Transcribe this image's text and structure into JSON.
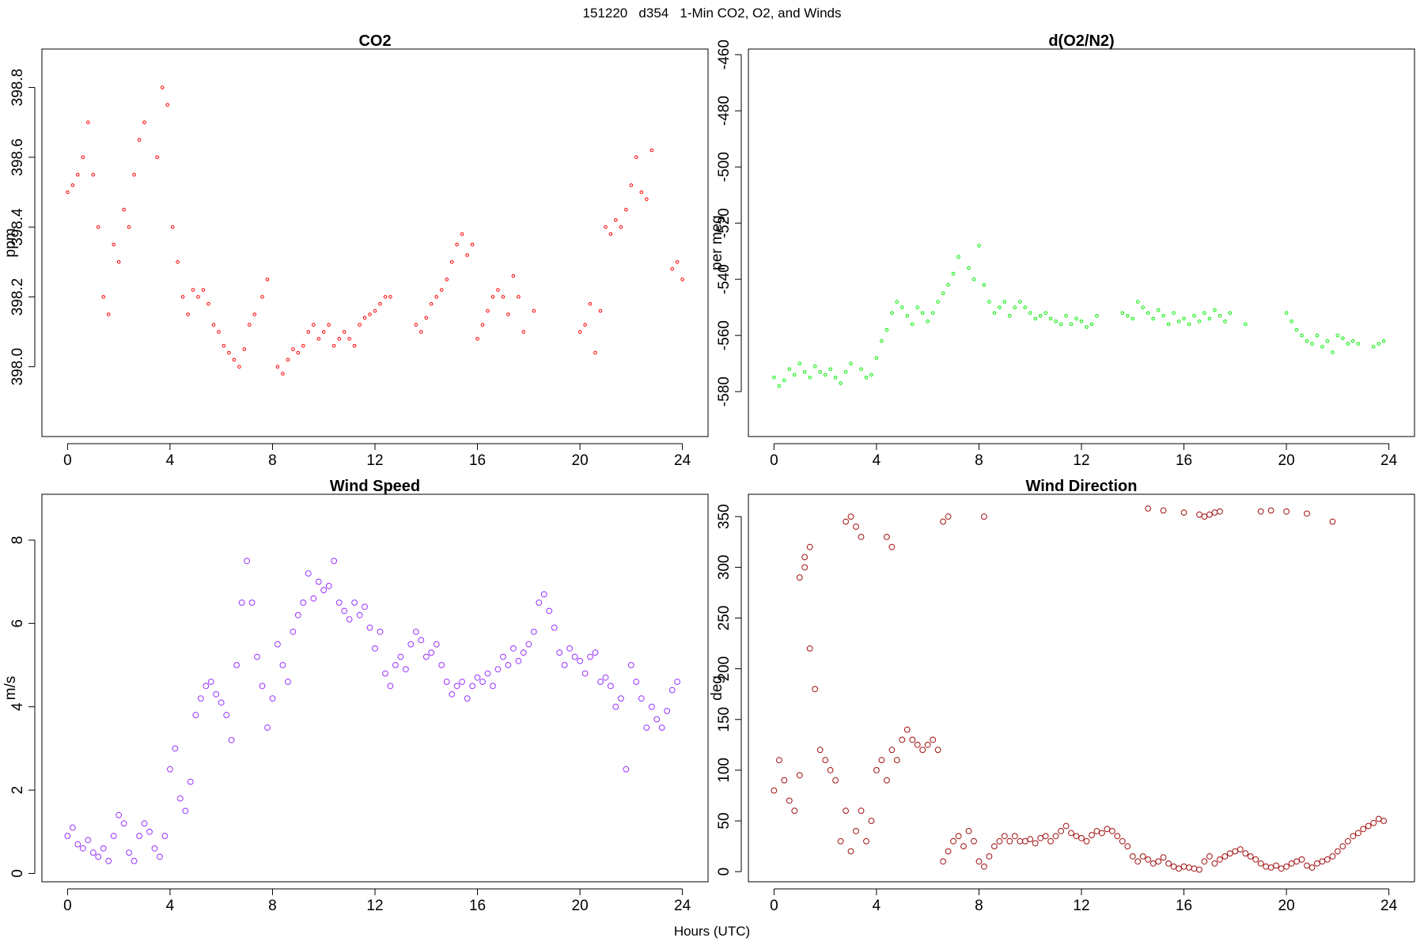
{
  "figure": {
    "suptitle": "151220   d354   1-Min CO2, O2, and Winds",
    "xlabel": "Hours (UTC)"
  },
  "chart_data": [
    {
      "type": "scatter",
      "title": "CO2",
      "xlabel": "",
      "ylabel": "ppm",
      "xlim": [
        -1,
        25
      ],
      "ylim": [
        397.8,
        398.91
      ],
      "xticks": [
        0,
        4,
        8,
        12,
        16,
        20,
        24
      ],
      "yticks": [
        398.0,
        398.2,
        398.4,
        398.6,
        398.8
      ],
      "ytick_labels": [
        "398.0",
        "398.2",
        "398.4",
        "398.6",
        "398.8"
      ],
      "color": "#ff0000",
      "marker_radius": 1.8,
      "series": [
        {
          "name": "CO2",
          "x": [
            0,
            0.2,
            0.4,
            0.6,
            0.8,
            1.0,
            1.2,
            1.4,
            1.6,
            1.8,
            2.0,
            2.2,
            2.4,
            2.6,
            2.8,
            3.0,
            3.5,
            3.7,
            3.9,
            4.1,
            4.3,
            4.5,
            4.7,
            4.9,
            5.1,
            5.3,
            5.5,
            5.7,
            5.9,
            6.1,
            6.3,
            6.5,
            6.7,
            6.9,
            7.1,
            7.3,
            7.6,
            7.8,
            8.2,
            8.4,
            8.6,
            8.8,
            9.0,
            9.2,
            9.4,
            9.6,
            9.8,
            10.0,
            10.2,
            10.4,
            10.6,
            10.8,
            11.0,
            11.2,
            11.4,
            11.6,
            11.8,
            12.0,
            12.2,
            12.4,
            12.6,
            13.6,
            13.8,
            14.0,
            14.2,
            14.4,
            14.6,
            14.8,
            15.0,
            15.2,
            15.4,
            15.6,
            15.8,
            16.0,
            16.2,
            16.4,
            16.6,
            16.8,
            17.0,
            17.2,
            17.4,
            17.6,
            17.8,
            18.2,
            20.0,
            20.2,
            20.4,
            20.6,
            20.8,
            21.0,
            21.2,
            21.4,
            21.6,
            21.8,
            22.0,
            22.2,
            22.4,
            22.6,
            22.8,
            23.6,
            23.8,
            24.0
          ],
          "y": [
            398.5,
            398.52,
            398.55,
            398.6,
            398.7,
            398.55,
            398.4,
            398.2,
            398.15,
            398.35,
            398.3,
            398.45,
            398.4,
            398.55,
            398.65,
            398.7,
            398.6,
            398.8,
            398.75,
            398.4,
            398.3,
            398.2,
            398.15,
            398.22,
            398.2,
            398.22,
            398.18,
            398.12,
            398.1,
            398.06,
            398.04,
            398.02,
            398.0,
            398.05,
            398.12,
            398.15,
            398.2,
            398.25,
            398.0,
            397.98,
            398.02,
            398.05,
            398.04,
            398.06,
            398.1,
            398.12,
            398.08,
            398.1,
            398.12,
            398.06,
            398.08,
            398.1,
            398.08,
            398.06,
            398.12,
            398.14,
            398.15,
            398.16,
            398.18,
            398.2,
            398.2,
            398.12,
            398.1,
            398.14,
            398.18,
            398.2,
            398.22,
            398.25,
            398.3,
            398.35,
            398.38,
            398.32,
            398.35,
            398.08,
            398.12,
            398.16,
            398.2,
            398.22,
            398.2,
            398.15,
            398.26,
            398.2,
            398.1,
            398.16,
            398.1,
            398.12,
            398.18,
            398.04,
            398.16,
            398.4,
            398.38,
            398.42,
            398.4,
            398.45,
            398.52,
            398.6,
            398.5,
            398.48,
            398.62,
            398.28,
            398.3,
            398.25
          ]
        }
      ]
    },
    {
      "type": "scatter",
      "title": "d(O2/N2)",
      "xlabel": "",
      "ylabel": "per meg",
      "xlim": [
        -1,
        25
      ],
      "ylim": [
        -596,
        -458
      ],
      "xticks": [
        0,
        4,
        8,
        12,
        16,
        20,
        24
      ],
      "yticks": [
        -580,
        -560,
        -540,
        -520,
        -500,
        -480,
        -460
      ],
      "ytick_labels": [
        "-580",
        "-560",
        "-540",
        "-520",
        "-500",
        "-480",
        "-460"
      ],
      "color": "#00ee00",
      "marker_radius": 1.8,
      "series": [
        {
          "name": "d(O2/N2)",
          "x": [
            0,
            0.2,
            0.4,
            0.6,
            0.8,
            1.0,
            1.2,
            1.4,
            1.6,
            1.8,
            2.0,
            2.2,
            2.4,
            2.6,
            2.8,
            3.0,
            3.4,
            3.6,
            3.8,
            4.0,
            4.2,
            4.4,
            4.6,
            4.8,
            5.0,
            5.2,
            5.4,
            5.6,
            5.8,
            6.0,
            6.2,
            6.4,
            6.6,
            6.8,
            7.0,
            7.2,
            7.6,
            7.8,
            8.0,
            8.2,
            8.4,
            8.6,
            8.8,
            9.0,
            9.2,
            9.4,
            9.6,
            9.8,
            10.0,
            10.2,
            10.4,
            10.6,
            10.8,
            11.0,
            11.2,
            11.4,
            11.6,
            11.8,
            12.0,
            12.2,
            12.4,
            12.6,
            13.6,
            13.8,
            14.0,
            14.2,
            14.4,
            14.6,
            14.8,
            15.0,
            15.2,
            15.4,
            15.6,
            15.8,
            16.0,
            16.2,
            16.4,
            16.6,
            16.8,
            17.0,
            17.2,
            17.4,
            17.6,
            17.8,
            18.4,
            20.0,
            20.2,
            20.4,
            20.6,
            20.8,
            21.0,
            21.2,
            21.4,
            21.6,
            21.8,
            22.0,
            22.2,
            22.4,
            22.6,
            22.8,
            23.4,
            23.6,
            23.8
          ],
          "y": [
            -575,
            -578,
            -576,
            -572,
            -574,
            -570,
            -573,
            -575,
            -571,
            -573,
            -574,
            -572,
            -575,
            -577,
            -573,
            -570,
            -572,
            -575,
            -574,
            -568,
            -562,
            -558,
            -552,
            -548,
            -550,
            -553,
            -556,
            -550,
            -552,
            -555,
            -552,
            -548,
            -545,
            -542,
            -538,
            -532,
            -536,
            -540,
            -528,
            -542,
            -548,
            -552,
            -550,
            -548,
            -553,
            -550,
            -548,
            -550,
            -552,
            -554,
            -553,
            -552,
            -554,
            -555,
            -556,
            -553,
            -556,
            -554,
            -555,
            -557,
            -556,
            -553,
            -552,
            -553,
            -554,
            -548,
            -550,
            -552,
            -554,
            -551,
            -553,
            -556,
            -552,
            -555,
            -554,
            -556,
            -553,
            -555,
            -552,
            -554,
            -551,
            -553,
            -555,
            -552,
            -556,
            -552,
            -555,
            -558,
            -560,
            -562,
            -563,
            -560,
            -564,
            -562,
            -566,
            -560,
            -561,
            -563,
            -562,
            -563,
            -564,
            -563,
            -562
          ]
        }
      ]
    },
    {
      "type": "scatter",
      "title": "Wind Speed",
      "xlabel": "",
      "ylabel": "m/s",
      "xlim": [
        -1,
        25
      ],
      "ylim": [
        -0.2,
        9.1
      ],
      "xticks": [
        0,
        4,
        8,
        12,
        16,
        20,
        24
      ],
      "yticks": [
        0,
        2,
        4,
        6,
        8
      ],
      "ytick_labels": [
        "0",
        "2",
        "4",
        "6",
        "8"
      ],
      "color": "#9a32ff",
      "marker_radius": 3.4,
      "series": [
        {
          "name": "Wind Speed",
          "x": [
            0,
            0.2,
            0.4,
            0.6,
            0.8,
            1.0,
            1.2,
            1.4,
            1.6,
            1.8,
            2.0,
            2.2,
            2.4,
            2.6,
            2.8,
            3.0,
            3.2,
            3.4,
            3.6,
            3.8,
            4.0,
            4.2,
            4.4,
            4.6,
            4.8,
            5.0,
            5.2,
            5.4,
            5.6,
            5.8,
            6.0,
            6.2,
            6.4,
            6.6,
            6.8,
            7.0,
            7.2,
            7.4,
            7.6,
            7.8,
            8.0,
            8.2,
            8.4,
            8.6,
            8.8,
            9.0,
            9.2,
            9.4,
            9.6,
            9.8,
            10.0,
            10.2,
            10.4,
            10.6,
            10.8,
            11.0,
            11.2,
            11.4,
            11.6,
            11.8,
            12.0,
            12.2,
            12.4,
            12.6,
            12.8,
            13.0,
            13.2,
            13.4,
            13.6,
            13.8,
            14.0,
            14.2,
            14.4,
            14.6,
            14.8,
            15.0,
            15.2,
            15.4,
            15.6,
            15.8,
            16.0,
            16.2,
            16.4,
            16.6,
            16.8,
            17.0,
            17.2,
            17.4,
            17.6,
            17.8,
            18.0,
            18.2,
            18.4,
            18.6,
            18.8,
            19.0,
            19.2,
            19.4,
            19.6,
            19.8,
            20.0,
            20.2,
            20.4,
            20.6,
            20.8,
            21.0,
            21.2,
            21.4,
            21.6,
            21.8,
            22.0,
            22.2,
            22.4,
            22.6,
            22.8,
            23.0,
            23.2,
            23.4,
            23.6,
            23.8
          ],
          "y": [
            0.9,
            1.1,
            0.7,
            0.6,
            0.8,
            0.5,
            0.4,
            0.6,
            0.3,
            0.9,
            1.4,
            1.2,
            0.5,
            0.3,
            0.9,
            1.2,
            1.0,
            0.6,
            0.4,
            0.9,
            2.5,
            3.0,
            1.8,
            1.5,
            2.2,
            3.8,
            4.2,
            4.5,
            4.6,
            4.3,
            4.1,
            3.8,
            3.2,
            5.0,
            6.5,
            7.5,
            6.5,
            5.2,
            4.5,
            3.5,
            4.2,
            5.5,
            5.0,
            4.6,
            5.8,
            6.2,
            6.5,
            7.2,
            6.6,
            7.0,
            6.8,
            6.9,
            7.5,
            6.5,
            6.3,
            6.1,
            6.5,
            6.2,
            6.4,
            5.9,
            5.4,
            5.8,
            4.8,
            4.5,
            5.0,
            5.2,
            4.9,
            5.5,
            5.8,
            5.6,
            5.2,
            5.3,
            5.5,
            5.0,
            4.6,
            4.3,
            4.5,
            4.6,
            4.2,
            4.5,
            4.7,
            4.6,
            4.8,
            4.5,
            4.9,
            5.2,
            5.0,
            5.4,
            5.1,
            5.3,
            5.5,
            5.8,
            6.5,
            6.7,
            6.3,
            5.9,
            5.3,
            5.0,
            5.4,
            5.2,
            5.1,
            4.8,
            5.2,
            5.3,
            4.6,
            4.7,
            4.5,
            4.0,
            4.2,
            2.5,
            5.0,
            4.6,
            4.2,
            3.5,
            4.0,
            3.7,
            3.5,
            3.9,
            4.4,
            4.6
          ]
        }
      ]
    },
    {
      "type": "scatter",
      "title": "Wind Direction",
      "xlabel": "",
      "ylabel": "deg",
      "xlim": [
        -1,
        25
      ],
      "ylim": [
        -10,
        372
      ],
      "xticks": [
        0,
        4,
        8,
        12,
        16,
        20,
        24
      ],
      "yticks": [
        0,
        50,
        100,
        150,
        200,
        250,
        300,
        350
      ],
      "ytick_labels": [
        "0",
        "50",
        "100",
        "150",
        "200",
        "250",
        "300",
        "350"
      ],
      "color": "#a01010",
      "marker_radius": 3.4,
      "series": [
        {
          "name": "Wind Direction",
          "x": [
            0,
            0.2,
            0.4,
            0.6,
            0.8,
            1.0,
            1.2,
            1.4,
            1.6,
            1.8,
            2.0,
            2.2,
            2.4,
            2.6,
            2.8,
            3.0,
            3.2,
            3.4,
            3.6,
            3.8,
            4.0,
            4.2,
            4.4,
            4.6,
            4.8,
            5.0,
            5.2,
            5.4,
            5.6,
            5.8,
            6.0,
            6.2,
            6.4,
            6.6,
            6.8,
            7.0,
            7.2,
            7.4,
            7.6,
            7.8,
            8.0,
            8.2,
            8.4,
            8.6,
            8.8,
            9.0,
            9.2,
            9.4,
            9.6,
            9.8,
            10.0,
            10.2,
            10.4,
            10.6,
            10.8,
            11.0,
            11.2,
            11.4,
            11.6,
            11.8,
            12.0,
            12.2,
            12.4,
            12.6,
            12.8,
            13.0,
            13.2,
            13.4,
            13.6,
            13.8,
            14.0,
            14.2,
            14.4,
            14.6,
            14.8,
            15.0,
            15.2,
            15.4,
            15.6,
            15.8,
            16.0,
            16.2,
            16.4,
            16.6,
            16.8,
            17.0,
            17.2,
            17.4,
            17.6,
            17.8,
            18.0,
            18.2,
            18.4,
            18.6,
            18.8,
            19.0,
            19.2,
            19.4,
            19.6,
            19.8,
            20.0,
            20.2,
            20.4,
            20.6,
            20.8,
            21.0,
            21.2,
            21.4,
            21.6,
            21.8,
            22.0,
            22.2,
            22.4,
            22.6,
            22.8,
            23.0,
            23.2,
            23.4,
            23.6,
            23.8,
            2.8,
            3.0,
            3.2,
            3.4,
            1.0,
            1.2,
            1.4,
            6.6,
            6.8,
            8.2,
            14.6,
            15.2,
            16.0,
            16.6,
            16.8,
            17.0,
            17.2,
            17.4,
            19.0,
            19.4,
            20.0,
            20.8,
            21.8,
            4.4,
            4.6
          ],
          "y": [
            80,
            110,
            90,
            70,
            60,
            95,
            300,
            220,
            180,
            120,
            110,
            100,
            90,
            30,
            60,
            20,
            40,
            60,
            30,
            50,
            100,
            110,
            90,
            120,
            110,
            130,
            140,
            130,
            125,
            120,
            125,
            130,
            120,
            10,
            20,
            30,
            35,
            25,
            40,
            30,
            10,
            5,
            15,
            25,
            30,
            35,
            30,
            35,
            30,
            30,
            32,
            28,
            33,
            35,
            30,
            35,
            40,
            45,
            38,
            35,
            33,
            30,
            36,
            40,
            38,
            42,
            40,
            35,
            30,
            25,
            15,
            10,
            15,
            12,
            8,
            10,
            14,
            8,
            5,
            3,
            5,
            4,
            3,
            2,
            10,
            15,
            8,
            12,
            15,
            18,
            20,
            22,
            18,
            15,
            12,
            8,
            5,
            4,
            6,
            3,
            5,
            8,
            10,
            12,
            6,
            4,
            8,
            10,
            12,
            15,
            20,
            25,
            30,
            35,
            38,
            42,
            45,
            48,
            52,
            50,
            345,
            350,
            340,
            330,
            290,
            310,
            320,
            345,
            350,
            350,
            358,
            356,
            354,
            352,
            350,
            352,
            354,
            355,
            355,
            356,
            355,
            353,
            345,
            330,
            320
          ]
        }
      ]
    }
  ]
}
